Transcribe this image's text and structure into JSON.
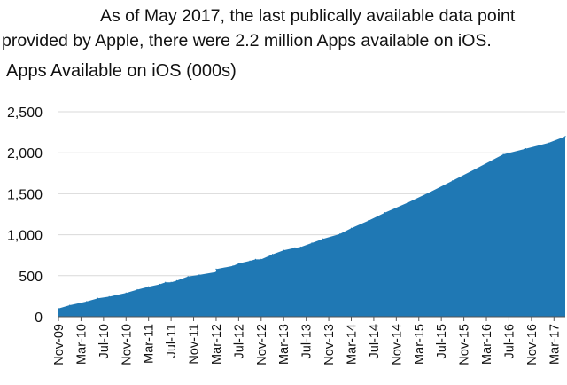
{
  "intro": {
    "line1": "As of May 2017, the last publically available data point",
    "line2": "provided by Apple, there were 2.2 million Apps available on iOS."
  },
  "chart_data": {
    "type": "area",
    "title": "Apps Available on iOS (000s)",
    "xlabel": "",
    "ylabel": "",
    "ylim": [
      0,
      2500
    ],
    "yticks": [
      0,
      500,
      1000,
      1500,
      2000,
      2500
    ],
    "ytick_labels": [
      "0",
      "500",
      "1,000",
      "1,500",
      "2,000",
      "2,500"
    ],
    "xticks": [
      "Nov-09",
      "Mar-10",
      "Jul-10",
      "Nov-10",
      "Mar-11",
      "Jul-11",
      "Nov-11",
      "Mar-12",
      "Jul-12",
      "Nov-12",
      "Mar-13",
      "Jul-13",
      "Nov-13",
      "Mar-14",
      "Jul-14",
      "Nov-14",
      "Mar-15",
      "Jul-15",
      "Nov-15",
      "Mar-16",
      "Jul-16",
      "Nov-16",
      "Mar-17"
    ],
    "grid": true,
    "color": "#1f78b4",
    "series": [
      {
        "x": [
          "2009-11",
          "2010-01",
          "2010-04",
          "2010-06",
          "2010-08",
          "2010-11",
          "2011-01",
          "2011-03",
          "2011-05",
          "2011-06",
          "2011-07",
          "2011-08",
          "2011-10",
          "2011-12",
          "2012-03",
          "2012-03",
          "2012-06",
          "2012-07",
          "2012-09",
          "2012-10",
          "2012-11",
          "2013-01",
          "2013-03",
          "2013-05",
          "2013-06",
          "2013-08",
          "2013-10",
          "2014-01",
          "2014-03",
          "2014-06",
          "2014-09",
          "2015-01",
          "2015-05",
          "2015-09",
          "2016-01",
          "2016-06",
          "2016-10",
          "2017-02",
          "2017-05"
        ],
        "values": [
          100,
          140,
          185,
          225,
          245,
          290,
          330,
          365,
          395,
          420,
          420,
          440,
          490,
          510,
          545,
          580,
          620,
          650,
          680,
          700,
          700,
          760,
          810,
          840,
          850,
          900,
          950,
          1010,
          1080,
          1170,
          1270,
          1390,
          1520,
          1660,
          1800,
          1980,
          2050,
          2120,
          2200
        ]
      }
    ]
  }
}
